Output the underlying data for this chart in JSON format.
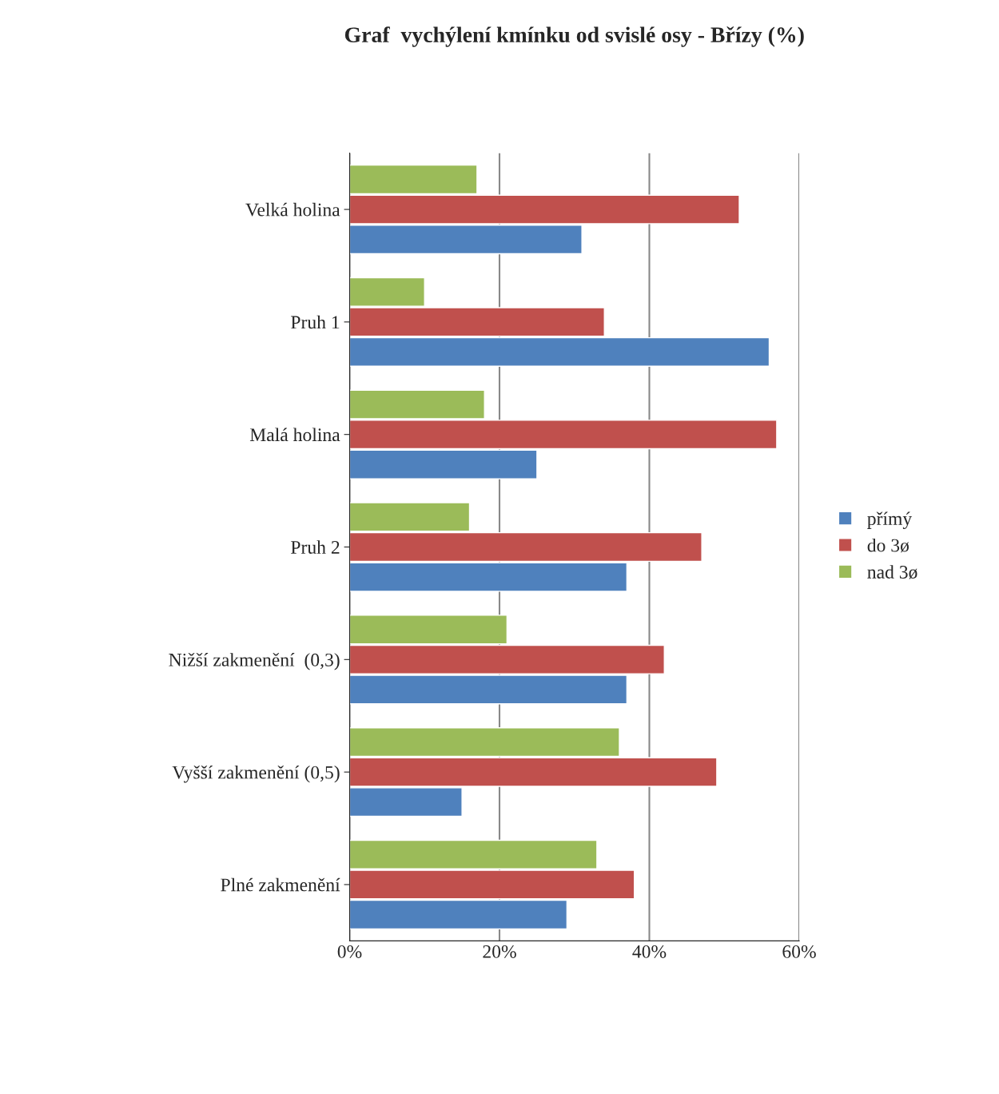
{
  "chart_data": {
    "type": "bar",
    "orientation": "horizontal",
    "title": "Graf  vychýlení kmínku od svislé osy - Břízy (%)",
    "categories": [
      "Velká holina",
      "Pruh 1",
      "Malá holina",
      "Pruh 2",
      "Nižší zakmenění  (0,3)",
      "Vyšší zakmenění (0,5)",
      "Plné zakmenění"
    ],
    "series": [
      {
        "name": "nad 3ø",
        "color": "#9bbb59",
        "values": [
          17,
          10,
          18,
          16,
          21,
          36,
          33
        ]
      },
      {
        "name": "do 3ø",
        "color": "#c0504d",
        "values": [
          52,
          34,
          57,
          47,
          42,
          49,
          38
        ]
      },
      {
        "name": "přímý",
        "color": "#4f81bd",
        "values": [
          31,
          56,
          25,
          37,
          37,
          15,
          29
        ]
      }
    ],
    "xlim": [
      0,
      60
    ],
    "xticks": [
      {
        "value": 0,
        "label": "0%"
      },
      {
        "value": 20,
        "label": "20%"
      },
      {
        "value": 40,
        "label": "40%"
      },
      {
        "value": 60,
        "label": "60%"
      }
    ],
    "grid": "x",
    "legend": "right"
  }
}
